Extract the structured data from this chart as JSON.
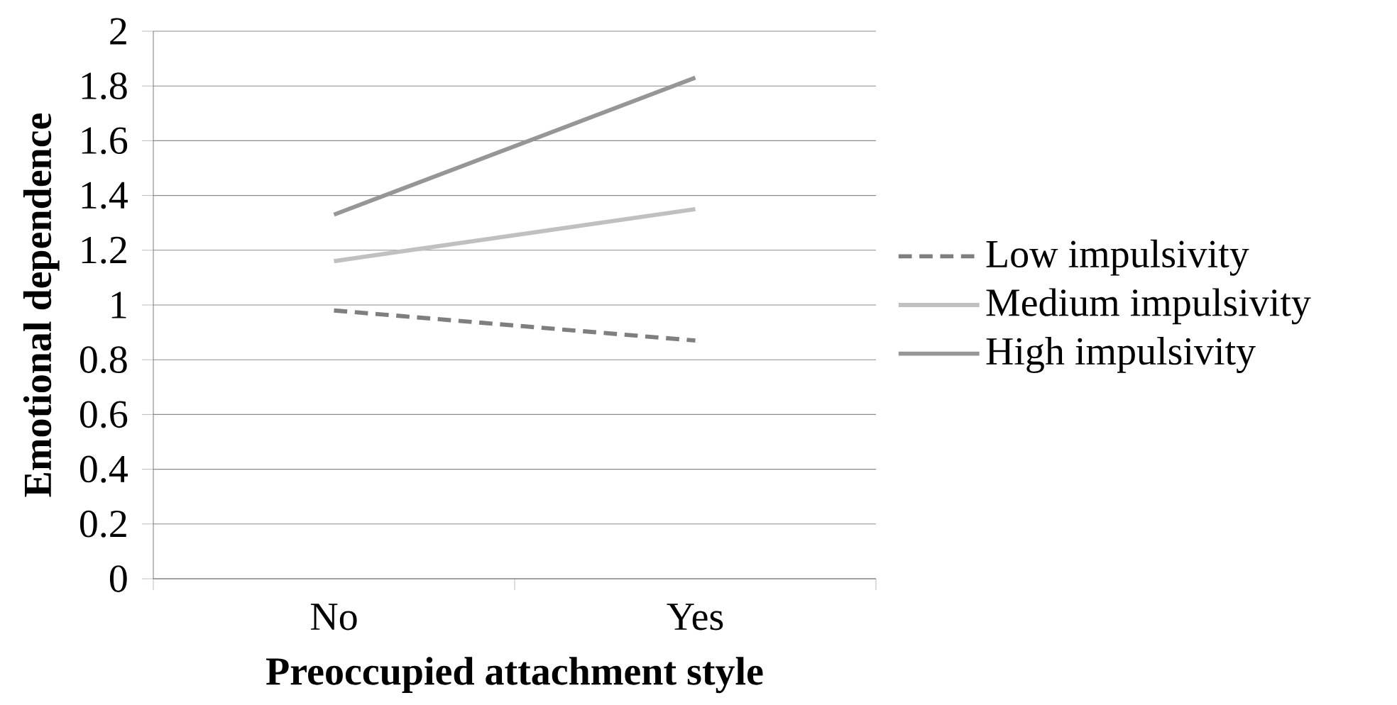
{
  "chart_data": {
    "type": "line",
    "xlabel": "Preoccupied attachment style",
    "ylabel": "Emotional dependence",
    "categories": [
      "No",
      "Yes"
    ],
    "series": [
      {
        "name": "Low impulsivity",
        "color": "#7f7f7f",
        "line_style": "dashed",
        "values": [
          0.98,
          0.87
        ]
      },
      {
        "name": "Medium impulsivity",
        "color": "#c0c0c0",
        "line_style": "solid",
        "values": [
          1.16,
          1.35
        ]
      },
      {
        "name": "High impulsivity",
        "color": "#969696",
        "line_style": "solid",
        "values": [
          1.33,
          1.83
        ]
      }
    ],
    "ylim": [
      0,
      2
    ],
    "yticks": [
      0,
      0.2,
      0.4,
      0.6,
      0.8,
      1,
      1.2,
      1.4,
      1.6,
      1.8,
      2
    ],
    "grid": "y",
    "legend": "right",
    "marker": "none"
  }
}
